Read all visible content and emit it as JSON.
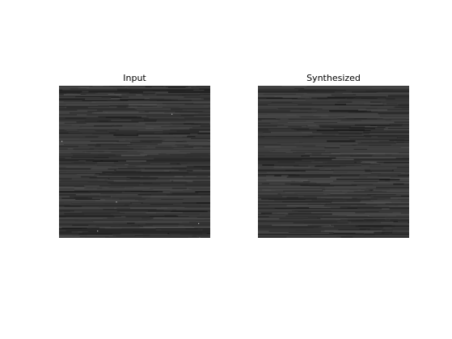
{
  "figure": {
    "panels": [
      {
        "title": "Input",
        "texture": "grayscale horizontal streak texture (input sample)"
      },
      {
        "title": "Synthesized",
        "texture": "grayscale horizontal streak texture (synthesized result)"
      }
    ],
    "colors": {
      "background": "#ffffff",
      "texture_base": "#4a4a4a",
      "texture_dark": "#2e2e2e",
      "texture_light": "#6a6a6a"
    }
  }
}
